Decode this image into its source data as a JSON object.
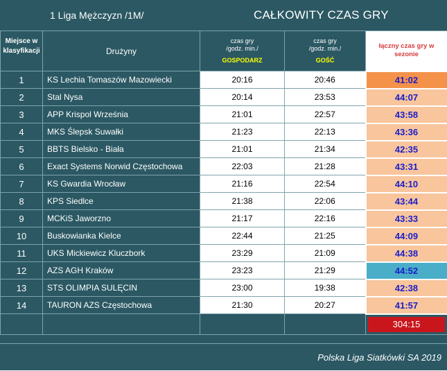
{
  "header": {
    "league": "1 Liga Mężczyzn /1M/",
    "title": "CAŁKOWITY CZAS GRY"
  },
  "columns": {
    "place": "Miejsce w klasyfikacji",
    "team": "Drużyny",
    "home_line1": "czas gry",
    "home_line2": "/godz. min./",
    "home_label": "GOSPODARZ",
    "away_line1": "czas gry",
    "away_line2": "/godz. min./",
    "away_label": "GOŚĆ",
    "total": "łączny czas gry w sezonie"
  },
  "rows": [
    {
      "place": "1",
      "team": "KS Lechia Tomaszów Mazowiecki",
      "home": "20:16",
      "away": "20:46",
      "total": "41:02",
      "highlight": "best"
    },
    {
      "place": "2",
      "team": "Stal Nysa",
      "home": "20:14",
      "away": "23:53",
      "total": "44:07",
      "highlight": ""
    },
    {
      "place": "3",
      "team": "APP Krispol Września",
      "home": "21:01",
      "away": "22:57",
      "total": "43:58",
      "highlight": ""
    },
    {
      "place": "4",
      "team": "MKS Ślepsk Suwałki",
      "home": "21:23",
      "away": "22:13",
      "total": "43:36",
      "highlight": ""
    },
    {
      "place": "5",
      "team": "BBTS Bielsko - Biała",
      "home": "21:01",
      "away": "21:34",
      "total": "42:35",
      "highlight": ""
    },
    {
      "place": "6",
      "team": "Exact Systems Norwid Częstochowa",
      "home": "22:03",
      "away": "21:28",
      "total": "43:31",
      "highlight": ""
    },
    {
      "place": "7",
      "team": "KS Gwardia Wrocław",
      "home": "21:16",
      "away": "22:54",
      "total": "44:10",
      "highlight": ""
    },
    {
      "place": "8",
      "team": "KPS Siedlce",
      "home": "21:38",
      "away": "22:06",
      "total": "43:44",
      "highlight": ""
    },
    {
      "place": "9",
      "team": "MCKiS Jaworzno",
      "home": "21:17",
      "away": "22:16",
      "total": "43:33",
      "highlight": ""
    },
    {
      "place": "10",
      "team": "Buskowianka Kielce",
      "home": "22:44",
      "away": "21:25",
      "total": "44:09",
      "highlight": ""
    },
    {
      "place": "11",
      "team": "UKS Mickiewicz Kluczbork",
      "home": "23:29",
      "away": "21:09",
      "total": "44:38",
      "highlight": ""
    },
    {
      "place": "12",
      "team": "AZS AGH Kraków",
      "home": "23:23",
      "away": "21:29",
      "total": "44:52",
      "highlight": "worst"
    },
    {
      "place": "13",
      "team": "STS OLIMPIA SULĘCIN",
      "home": "23:00",
      "away": "19:38",
      "total": "42:38",
      "highlight": ""
    },
    {
      "place": "14",
      "team": "TAURON AZS Częstochowa",
      "home": "21:30",
      "away": "20:27",
      "total": "41:57",
      "highlight": ""
    }
  ],
  "summary": {
    "total": "304:15"
  },
  "footer": {
    "text": "Polska Liga Siatkówki SA 2019"
  },
  "colors": {
    "background": "#2b5863",
    "total_cell": "#f8c59d",
    "best": "#f4924a",
    "worst": "#4aaec8",
    "sum_box": "#c9161d",
    "total_text": "#1a1ec8"
  }
}
